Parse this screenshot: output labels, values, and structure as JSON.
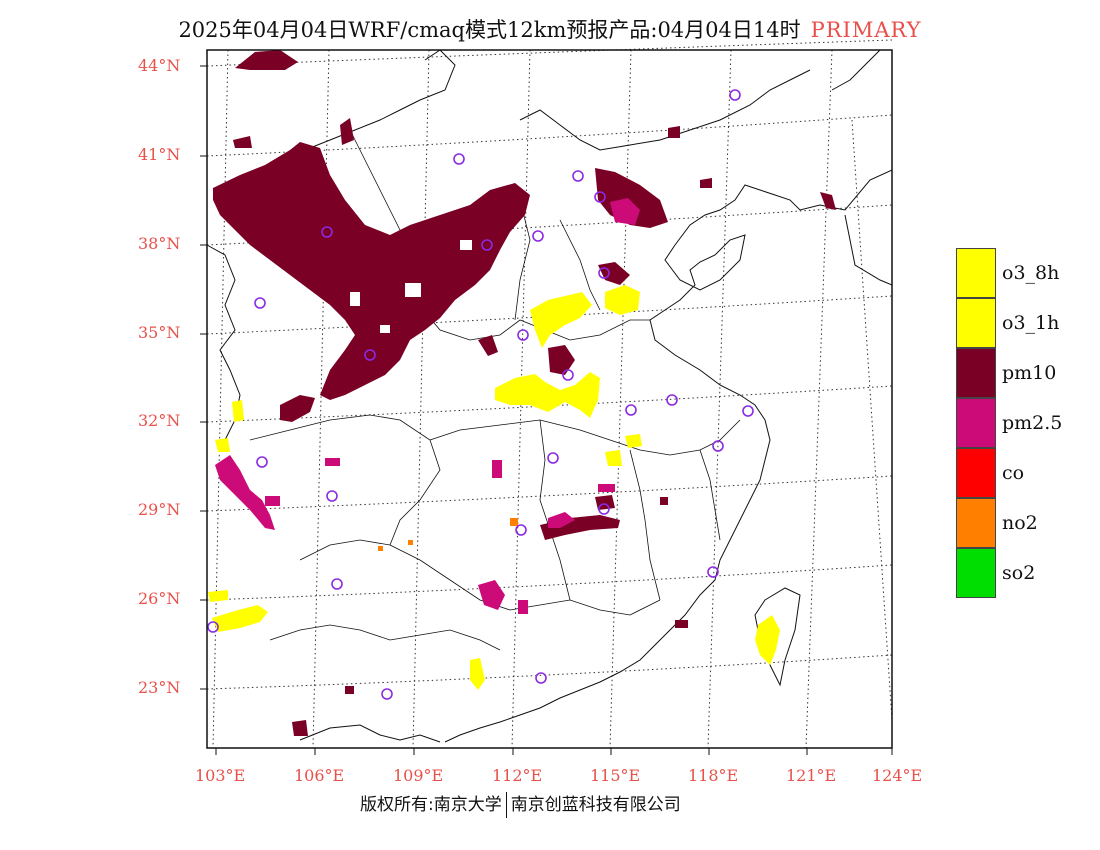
{
  "header": {
    "title": "2025年04月04日WRF/cmaq模式12km预报产品:04月04日14时",
    "mode": "PRIMARY"
  },
  "axes": {
    "lat_labels": [
      "44°N",
      "41°N",
      "38°N",
      "35°N",
      "32°N",
      "29°N",
      "26°N",
      "23°N"
    ],
    "lon_labels": [
      "103°E",
      "106°E",
      "109°E",
      "112°E",
      "115°E",
      "118°E",
      "121°E",
      "124°E"
    ]
  },
  "legend": {
    "items": [
      {
        "label": "o3_8h",
        "color": "#ffff00"
      },
      {
        "label": "o3_1h",
        "color": "#ffff00"
      },
      {
        "label": "pm10",
        "color": "#7a0026"
      },
      {
        "label": "pm2.5",
        "color": "#cc0a78"
      },
      {
        "label": "co",
        "color": "#ff0000"
      },
      {
        "label": "no2",
        "color": "#ff7f00"
      },
      {
        "label": "so2",
        "color": "#00dd00"
      }
    ]
  },
  "footer": {
    "left": "版权所有:南京大学",
    "right": "南京创蓝科技有限公司"
  },
  "colors": {
    "axis_label": "#e8504a",
    "station_marker": "#8a2be2"
  }
}
